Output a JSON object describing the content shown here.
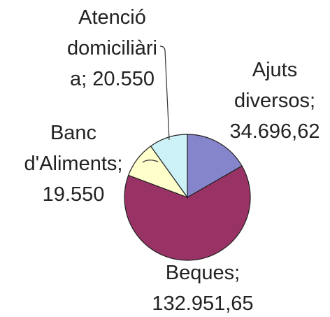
{
  "chart_data": {
    "type": "pie",
    "categories": [
      "Ajuts diversos",
      "Beques",
      "Banc d'Aliments",
      "Atenció domiciliària"
    ],
    "values": [
      34696.62,
      132951.65,
      19550,
      20550
    ],
    "value_labels": [
      "34.696,62",
      "132.951,65",
      "19.550",
      "20.550"
    ],
    "label_separator": "; ",
    "colors": [
      "#8585cc",
      "#993366",
      "#ffffcc",
      "#ccf2f7"
    ]
  }
}
